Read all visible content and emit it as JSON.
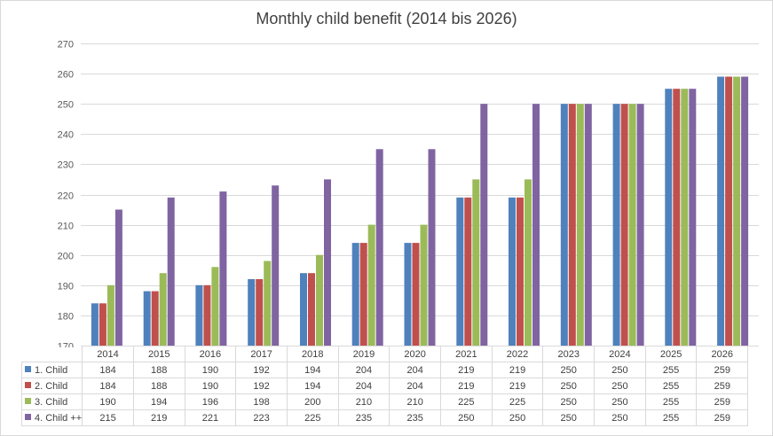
{
  "chart_data": {
    "type": "bar",
    "title": "Monthly child benefit (2014 bis 2026)",
    "xlabel": "",
    "ylabel": "",
    "ylim": [
      170,
      270
    ],
    "yticks": [
      170,
      180,
      190,
      200,
      210,
      220,
      230,
      240,
      250,
      260,
      270
    ],
    "grid": true,
    "legend": "data-table",
    "categories": [
      "2014",
      "2015",
      "2016",
      "2017",
      "2018",
      "2019",
      "2020",
      "2021",
      "2022",
      "2023",
      "2024",
      "2025",
      "2026"
    ],
    "series": [
      {
        "name": "1. Child",
        "color": "#4f81bd",
        "values": [
          184,
          188,
          190,
          192,
          194,
          204,
          204,
          219,
          219,
          250,
          250,
          255,
          259
        ]
      },
      {
        "name": "2. Child",
        "color": "#c0504d",
        "values": [
          184,
          188,
          190,
          192,
          194,
          204,
          204,
          219,
          219,
          250,
          250,
          255,
          259
        ]
      },
      {
        "name": "3. Child",
        "color": "#9bbb59",
        "values": [
          190,
          194,
          196,
          198,
          200,
          210,
          210,
          225,
          225,
          250,
          250,
          255,
          259
        ]
      },
      {
        "name": "4. Child ++",
        "color": "#8064a2",
        "values": [
          215,
          219,
          221,
          223,
          225,
          235,
          235,
          250,
          250,
          250,
          250,
          255,
          259
        ]
      }
    ]
  }
}
